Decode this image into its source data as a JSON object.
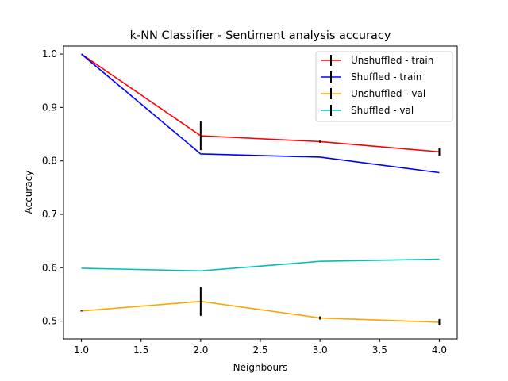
{
  "chart_data": {
    "type": "line",
    "title": "k-NN Classifier - Sentiment analysis accuracy",
    "xlabel": "Neighbours",
    "ylabel": "Accuracy",
    "xlim": [
      0.85,
      4.15
    ],
    "ylim": [
      0.4667,
      1.015
    ],
    "xticks": [
      1.0,
      1.5,
      2.0,
      2.5,
      3.0,
      3.5,
      4.0
    ],
    "xtick_labels": [
      "1.0",
      "1.5",
      "2.0",
      "2.5",
      "3.0",
      "3.5",
      "4.0"
    ],
    "yticks": [
      0.5,
      0.6,
      0.7,
      0.8,
      0.9,
      1.0
    ],
    "ytick_labels": [
      "0.5",
      "0.6",
      "0.7",
      "0.8",
      "0.9",
      "1.0"
    ],
    "grid": false,
    "legend_position": "top-right",
    "x": [
      1,
      2,
      3,
      4
    ],
    "series": [
      {
        "name": "Unshuffled - train",
        "color": "#ff0000",
        "values": [
          1.0,
          0.847,
          0.836,
          0.817
        ],
        "errors": [
          0.0,
          0.027,
          0.002,
          0.007
        ]
      },
      {
        "name": "Shuffled - train",
        "color": "#0000ff",
        "values": [
          1.0,
          0.813,
          0.807,
          0.778
        ],
        "errors": [
          0,
          0,
          0,
          0
        ]
      },
      {
        "name": "Unshuffled - val",
        "color": "#ffa500",
        "values": [
          0.519,
          0.537,
          0.506,
          0.498
        ],
        "errors": [
          0.001,
          0.027,
          0.003,
          0.006
        ]
      },
      {
        "name": "Shuffled - val",
        "color": "#00bfbf",
        "values": [
          0.599,
          0.594,
          0.612,
          0.616
        ],
        "errors": [
          0,
          0,
          0,
          0
        ]
      }
    ]
  }
}
